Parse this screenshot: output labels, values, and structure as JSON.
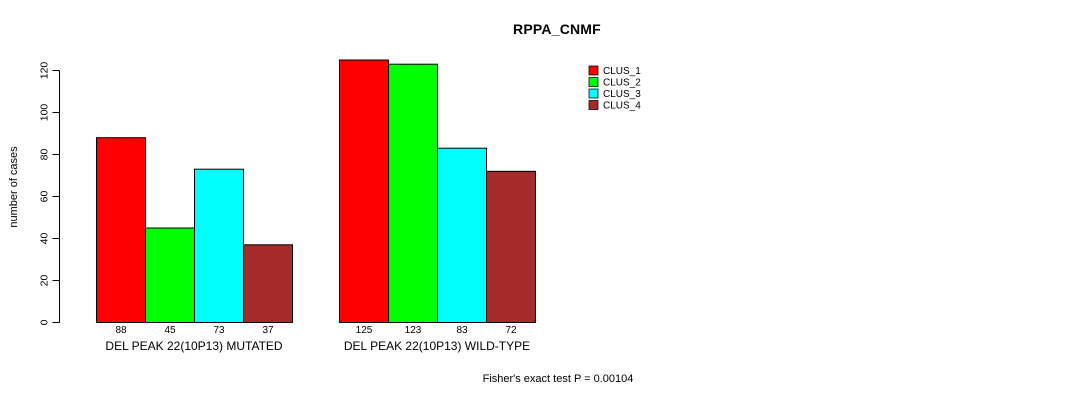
{
  "title": "RPPA_CNMF",
  "footer": "Fisher's exact test P = 0.00104",
  "chart_data": {
    "type": "bar",
    "title": "RPPA_CNMF",
    "xlabel": "",
    "ylabel": "number of cases",
    "ylim": [
      0,
      120
    ],
    "yticks": [
      0,
      20,
      40,
      60,
      80,
      100,
      120
    ],
    "grid": false,
    "legend_position": "top-right",
    "categories": [
      "DEL PEAK 22(10P13) MUTATED",
      "DEL PEAK 22(10P13) WILD-TYPE"
    ],
    "series": [
      {
        "name": "CLUS_1",
        "color": "#ff0000",
        "values": [
          88,
          125
        ]
      },
      {
        "name": "CLUS_2",
        "color": "#00ff00",
        "values": [
          45,
          123
        ]
      },
      {
        "name": "CLUS_3",
        "color": "#00ffff",
        "values": [
          73,
          83
        ]
      },
      {
        "name": "CLUS_4",
        "color": "#a52a2a",
        "values": [
          37,
          72
        ]
      }
    ],
    "bar_value_labels": [
      [
        88,
        45,
        73,
        37
      ],
      [
        125,
        123,
        83,
        72
      ]
    ],
    "annotation": "Fisher's exact test P = 0.00104"
  }
}
